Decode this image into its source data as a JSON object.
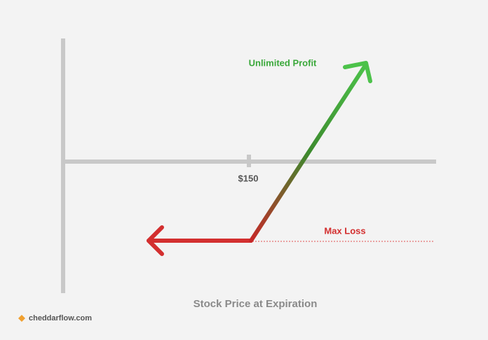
{
  "diagram": {
    "labels": {
      "profit": "Unlimited Profit",
      "strike": "$150",
      "loss": "Max Loss",
      "x_axis": "Stock Price at Expiration"
    },
    "brand": "cheddarflow.com"
  }
}
